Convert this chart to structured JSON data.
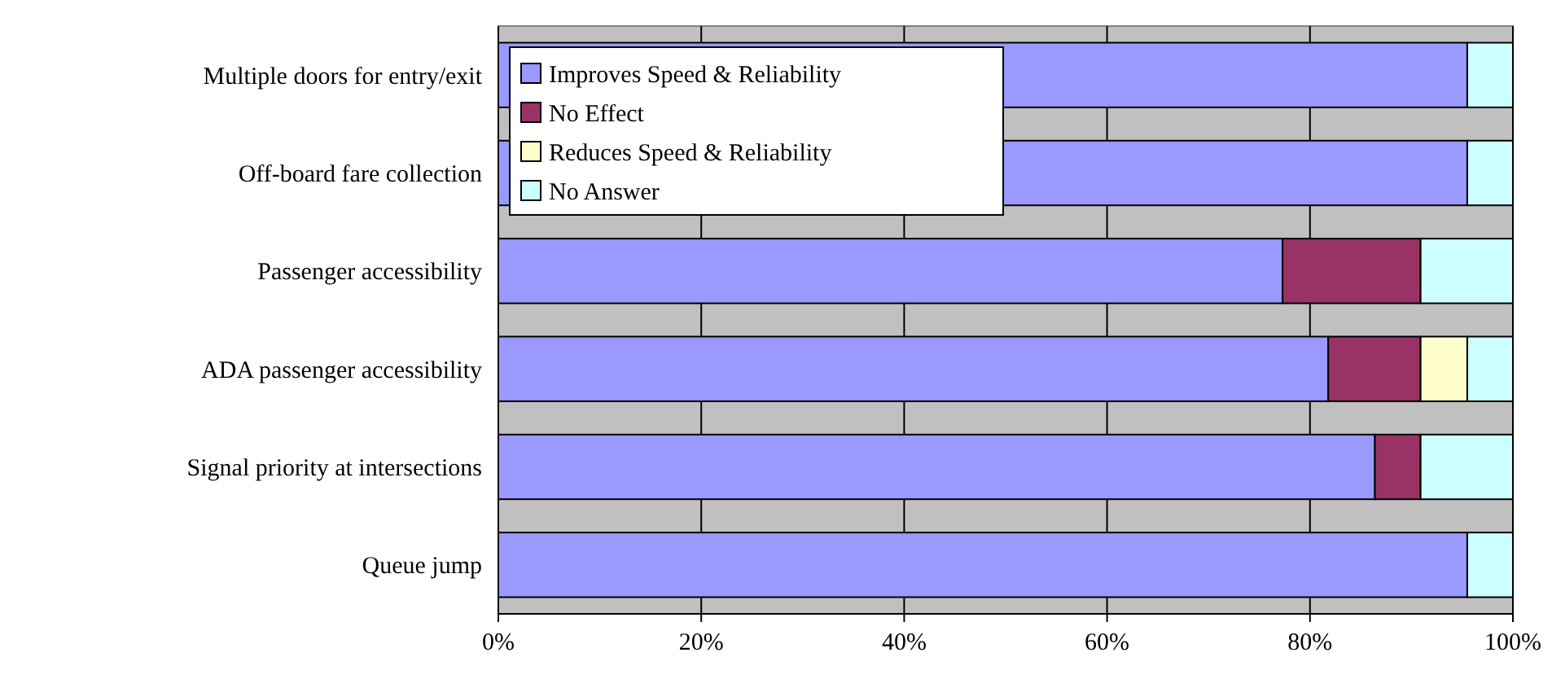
{
  "chart_data": {
    "type": "bar",
    "orientation": "horizontal",
    "stacked": true,
    "categories": [
      "Multiple doors for entry/exit",
      "Off-board fare collection",
      "Passenger accessibility",
      "ADA passenger accessibility",
      "Signal priority at intersections",
      "Queue jump"
    ],
    "series": [
      {
        "name": "Improves Speed & Reliability",
        "color": "#9999ff",
        "values": [
          95.5,
          95.5,
          77.3,
          81.8,
          86.4,
          95.5
        ]
      },
      {
        "name": "No Effect",
        "color": "#993366",
        "values": [
          0,
          0,
          13.6,
          9.1,
          4.5,
          0
        ]
      },
      {
        "name": "Reduces Speed & Reliability",
        "color": "#ffffcc",
        "values": [
          0,
          0,
          0,
          4.6,
          0,
          0
        ]
      },
      {
        "name": "No Answer",
        "color": "#ccffff",
        "values": [
          4.5,
          4.5,
          9.1,
          4.5,
          9.1,
          4.5
        ]
      }
    ],
    "xlim": [
      0,
      100
    ],
    "xticks": [
      {
        "value": 0,
        "label": "0%"
      },
      {
        "value": 20,
        "label": "20%"
      },
      {
        "value": 40,
        "label": "40%"
      },
      {
        "value": 60,
        "label": "60%"
      },
      {
        "value": 80,
        "label": "80%"
      },
      {
        "value": 100,
        "label": "100%"
      }
    ],
    "grid": "x",
    "legend": "top left"
  }
}
